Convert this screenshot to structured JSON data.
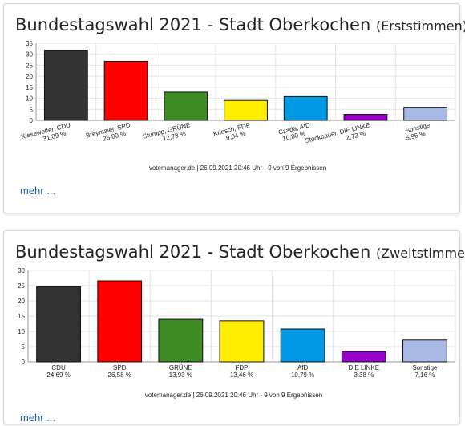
{
  "charts": [
    {
      "title": "Bundestagswahl 2021 - Stadt Oberkochen",
      "subtitle": "(Erststimmen)",
      "more_label": "mehr ...",
      "chart_data": {
        "type": "bar",
        "categories": [
          "Kiesewetter, CDU",
          "Breymaier, SPD",
          "Stumpp, GRÜNE",
          "Kriesch, FDP",
          "Czada, AfD",
          "Stockbauer, DIE LINKE",
          "Sonstige"
        ],
        "value_labels": [
          "31,89 %",
          "26,80 %",
          "12,78 %",
          "9,04 %",
          "10,80 %",
          "2,72 %",
          "5,96 %"
        ],
        "values": [
          31.89,
          26.8,
          12.78,
          9.04,
          10.8,
          2.72,
          5.96
        ],
        "colors": [
          "#333333",
          "#ff0000",
          "#3d8b22",
          "#ffee00",
          "#0099e6",
          "#9900cc",
          "#a9b9e6"
        ],
        "yticks": [
          "0",
          "5",
          "10",
          "15",
          "20",
          "25",
          "30",
          "35"
        ],
        "ylim": [
          0,
          35
        ],
        "footer": "votemanager.de | 26.09.2021 20:46 Uhr - 9 von 9 Ergebnissen",
        "grid": true
      }
    },
    {
      "title": "Bundestagswahl 2021 - Stadt Oberkochen",
      "subtitle": "(Zweitstimmen)",
      "more_label": "mehr ...",
      "chart_data": {
        "type": "bar",
        "categories": [
          "CDU",
          "SPD",
          "GRÜNE",
          "FDP",
          "AfD",
          "DIE LINKE",
          "Sonstige"
        ],
        "value_labels": [
          "24,69 %",
          "26,58 %",
          "13,93 %",
          "13,46 %",
          "10,79 %",
          "3,38 %",
          "7,16 %"
        ],
        "values": [
          24.69,
          26.58,
          13.93,
          13.46,
          10.79,
          3.38,
          7.16
        ],
        "colors": [
          "#333333",
          "#ff0000",
          "#3d8b22",
          "#ffee00",
          "#0099e6",
          "#9900cc",
          "#a9b9e6"
        ],
        "yticks": [
          "0",
          "5",
          "10",
          "15",
          "20",
          "25",
          "30"
        ],
        "ylim": [
          0,
          30
        ],
        "footer": "votemanager.de | 26.09.2021 20:46 Uhr - 9 von 9 Ergebnissen",
        "grid": true
      }
    }
  ]
}
